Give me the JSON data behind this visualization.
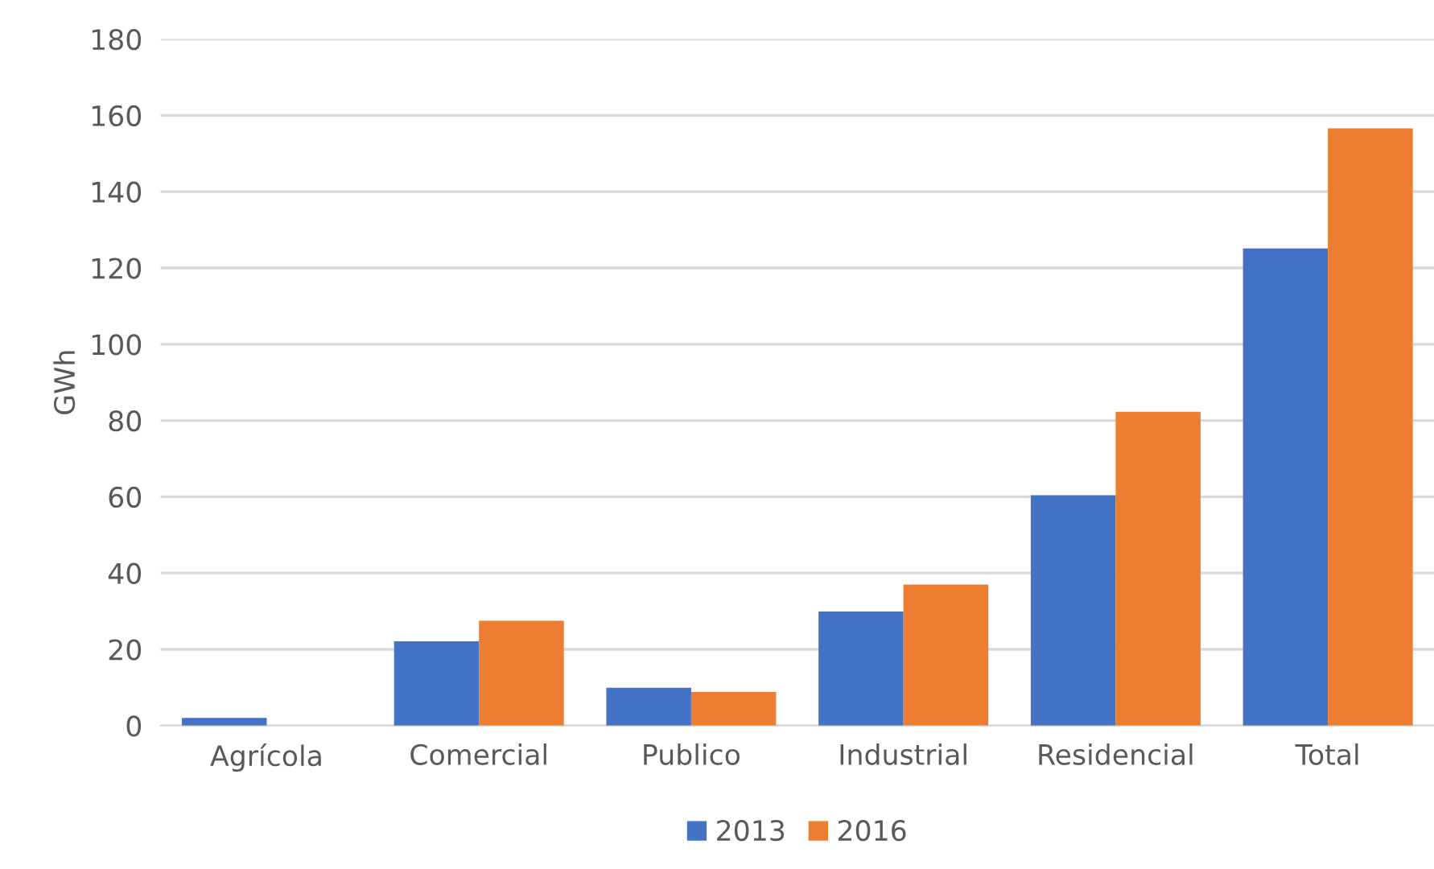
{
  "chart_data": {
    "type": "bar",
    "ylabel": "GWh",
    "categories": [
      "Agrícola",
      "Comercial",
      "Publico",
      "Industrial",
      "Residencial",
      "Total"
    ],
    "series": [
      {
        "name": "2013",
        "color": "#4472c4",
        "values": [
          2.0,
          22.1,
          9.9,
          29.9,
          60.4,
          125.1
        ]
      },
      {
        "name": "2016",
        "color": "#ed7d31",
        "values": [
          0,
          27.5,
          8.8,
          37.0,
          82.3,
          156.6
        ]
      }
    ],
    "ylim": [
      0,
      180
    ],
    "yticks": [
      0,
      20,
      40,
      60,
      80,
      100,
      120,
      140,
      160,
      180
    ],
    "grid": "y",
    "legend": "bottom"
  }
}
